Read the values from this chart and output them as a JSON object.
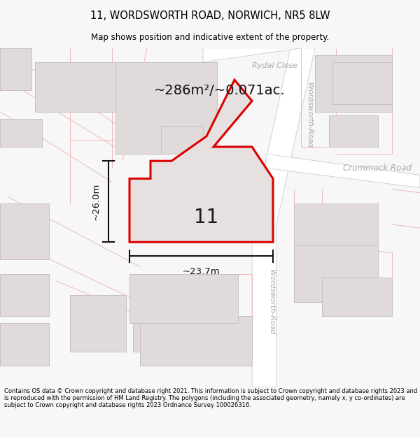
{
  "title": "11, WORDSWORTH ROAD, NORWICH, NR5 8LW",
  "subtitle": "Map shows position and indicative extent of the property.",
  "area_text": "~286m²/~0.071ac.",
  "width_label": "~23.7m",
  "height_label": "~26.0m",
  "number_label": "11",
  "footer": "Contains OS data © Crown copyright and database right 2021. This information is subject to Crown copyright and database rights 2023 and is reproduced with the permission of HM Land Registry. The polygons (including the associated geometry, namely x, y co-ordinates) are subject to Crown copyright and database rights 2023 Ordnance Survey 100026316.",
  "bg_color": "#f7f7f7",
  "map_bg": "#f2f0f0",
  "property_fill": "#e6e0e0",
  "property_edge": "#dd0000",
  "road_line_color": "#f0b8b8",
  "road_outline_color": "#cccccc",
  "building_fill": "#e0dada",
  "building_edge": "#c8c0c0",
  "road_fill": "#ffffff",
  "road_text_color": "#aaaaaa",
  "title_color": "#000000",
  "dim_color": "#111111",
  "footer_color": "#000000"
}
